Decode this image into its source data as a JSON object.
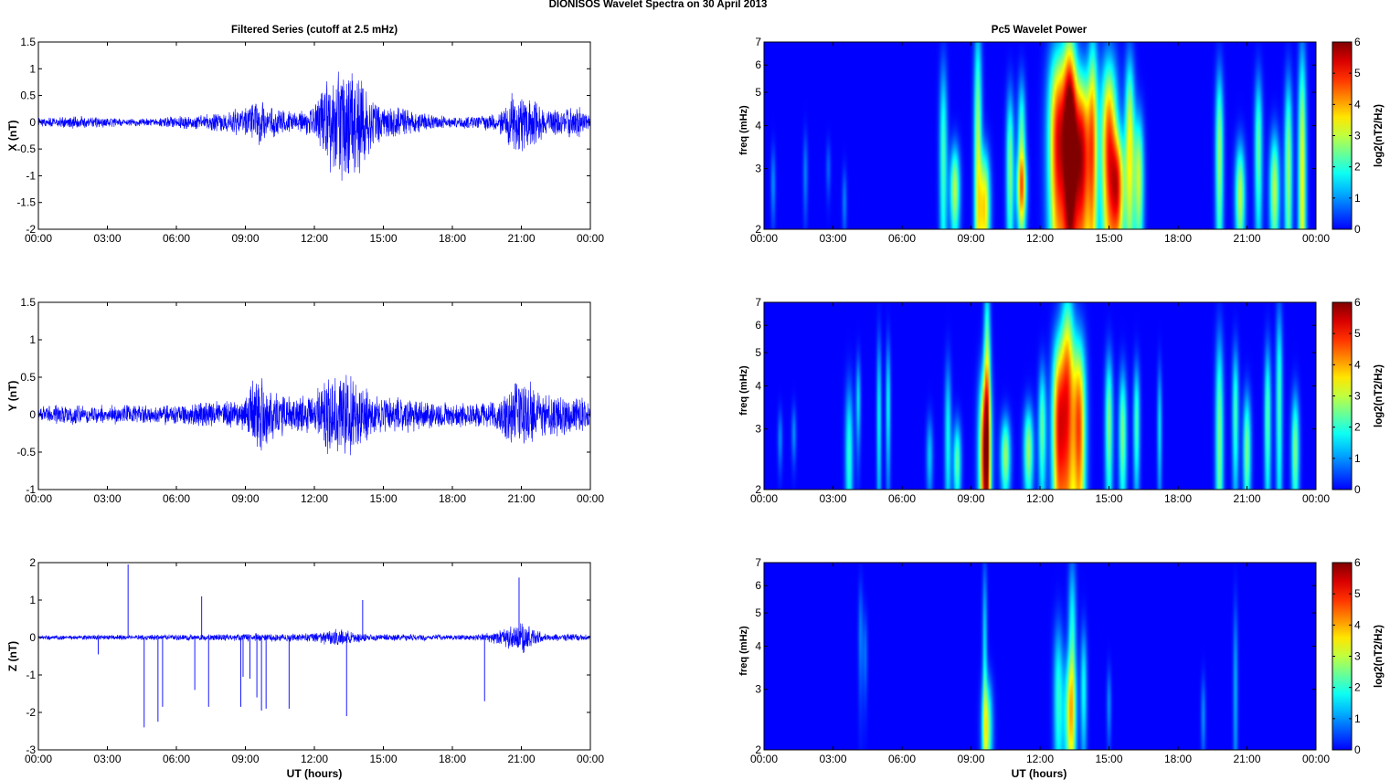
{
  "figure": {
    "suptitle": "DIONISOS Wavelet Spectra on 30 April     2013",
    "left_title": "Filtered Series (cutoff at 2.5 mHz)",
    "right_title": "Pc5 Wavelet Power",
    "xlabel": "UT (hours)"
  },
  "colors": {
    "trace": "#0000ff",
    "spectrum_background": "#00008f",
    "axes": "#000000",
    "colormap": "jet"
  },
  "chart_data": [
    {
      "type": "line",
      "panel": "X",
      "ylabel": "X (nT)",
      "xlabel": "",
      "xlim": [
        0,
        24
      ],
      "ylim": [
        -2,
        1.5
      ],
      "xticks": [
        "00:00",
        "03:00",
        "06:00",
        "09:00",
        "12:00",
        "15:00",
        "18:00",
        "21:00",
        "00:00"
      ],
      "yticks": [
        "-2",
        "-1.5",
        "-1",
        "-0.5",
        "0",
        "0.5",
        "1",
        "1.5"
      ],
      "x": [
        0,
        1,
        2,
        3,
        4,
        5,
        6,
        7,
        8,
        9,
        9.5,
        10,
        11,
        12,
        12.5,
        13,
        13.5,
        14,
        14.5,
        15,
        16,
        17,
        18,
        19,
        20,
        20.5,
        21,
        21.5,
        22,
        23,
        23.5,
        24
      ],
      "amplitude": [
        0.08,
        0.12,
        0.12,
        0.1,
        0.08,
        0.08,
        0.12,
        0.15,
        0.2,
        0.3,
        0.5,
        0.35,
        0.2,
        0.3,
        0.9,
        1.05,
        1.2,
        1.0,
        0.6,
        0.35,
        0.3,
        0.15,
        0.12,
        0.12,
        0.2,
        0.55,
        0.65,
        0.5,
        0.3,
        0.3,
        0.35,
        0.1
      ]
    },
    {
      "type": "heatmap",
      "panel": "X",
      "ylabel": "freq (mHz)",
      "colorbar_label": "log2(nT2/Hz)",
      "xlim": [
        0,
        24
      ],
      "ylim": [
        2,
        7
      ],
      "yscale": "log",
      "clim": [
        0,
        6
      ],
      "xticks": [
        "00:00",
        "03:00",
        "06:00",
        "09:00",
        "12:00",
        "15:00",
        "18:00",
        "21:00",
        "00:00"
      ],
      "yticks": [
        "2",
        "3",
        "4",
        "5",
        "6",
        "7"
      ],
      "cticks": [
        "0",
        "1",
        "2",
        "3",
        "4",
        "5",
        "6"
      ],
      "features": [
        {
          "t": 0.4,
          "f": 2.7,
          "w": 0.07,
          "h": 0.5,
          "p": 1.0
        },
        {
          "t": 1.8,
          "f": 2.9,
          "w": 0.07,
          "h": 0.6,
          "p": 0.9
        },
        {
          "t": 2.8,
          "f": 3.0,
          "w": 0.07,
          "h": 0.4,
          "p": 0.7
        },
        {
          "t": 3.5,
          "f": 2.4,
          "w": 0.07,
          "h": 0.4,
          "p": 0.9
        },
        {
          "t": 7.8,
          "f": 3.2,
          "w": 0.12,
          "h": 1.8,
          "p": 2.2
        },
        {
          "t": 8.3,
          "f": 2.6,
          "w": 0.15,
          "h": 0.6,
          "p": 3.0
        },
        {
          "t": 9.3,
          "f": 3.0,
          "w": 0.12,
          "h": 3.0,
          "p": 3.0
        },
        {
          "t": 9.6,
          "f": 2.3,
          "w": 0.16,
          "h": 0.7,
          "p": 3.6
        },
        {
          "t": 10.7,
          "f": 3.0,
          "w": 0.12,
          "h": 1.3,
          "p": 2.6
        },
        {
          "t": 11.2,
          "f": 3.6,
          "w": 0.12,
          "h": 1.2,
          "p": 2.4
        },
        {
          "t": 11.2,
          "f": 2.6,
          "w": 0.15,
          "h": 0.5,
          "p": 3.0
        },
        {
          "t": 12.8,
          "f": 3.5,
          "w": 0.3,
          "h": 2.0,
          "p": 5.2
        },
        {
          "t": 13.3,
          "f": 3.8,
          "w": 0.2,
          "h": 2.5,
          "p": 5.0
        },
        {
          "t": 13.8,
          "f": 3.2,
          "w": 0.3,
          "h": 1.6,
          "p": 5.6
        },
        {
          "t": 14.3,
          "f": 3.6,
          "w": 0.15,
          "h": 2.5,
          "p": 3.2
        },
        {
          "t": 15.0,
          "f": 3.4,
          "w": 0.25,
          "h": 1.8,
          "p": 4.8
        },
        {
          "t": 15.4,
          "f": 2.6,
          "w": 0.2,
          "h": 0.8,
          "p": 4.0
        },
        {
          "t": 15.9,
          "f": 3.5,
          "w": 0.15,
          "h": 1.8,
          "p": 3.4
        },
        {
          "t": 16.3,
          "f": 2.8,
          "w": 0.15,
          "h": 1.0,
          "p": 3.0
        },
        {
          "t": 19.8,
          "f": 3.3,
          "w": 0.12,
          "h": 1.6,
          "p": 2.8
        },
        {
          "t": 20.7,
          "f": 2.5,
          "w": 0.15,
          "h": 0.7,
          "p": 3.0
        },
        {
          "t": 21.5,
          "f": 3.4,
          "w": 0.12,
          "h": 1.4,
          "p": 2.4
        },
        {
          "t": 22.2,
          "f": 2.6,
          "w": 0.15,
          "h": 0.8,
          "p": 3.0
        },
        {
          "t": 22.8,
          "f": 3.0,
          "w": 0.12,
          "h": 1.6,
          "p": 2.8
        },
        {
          "t": 23.4,
          "f": 2.7,
          "w": 0.12,
          "h": 2.5,
          "p": 3.4
        }
      ]
    },
    {
      "type": "line",
      "panel": "Y",
      "ylabel": "Y (nT)",
      "xlabel": "",
      "xlim": [
        0,
        24
      ],
      "ylim": [
        -1,
        1.5
      ],
      "xticks": [
        "00:00",
        "03:00",
        "06:00",
        "09:00",
        "12:00",
        "15:00",
        "18:00",
        "21:00",
        "00:00"
      ],
      "yticks": [
        "-1",
        "-0.5",
        "0",
        "0.5",
        "1",
        "1.5"
      ],
      "x": [
        0,
        1,
        2,
        3,
        4,
        5,
        6,
        7,
        8,
        9,
        9.5,
        10,
        11,
        12,
        12.5,
        13,
        13.5,
        14,
        14.5,
        15,
        16,
        17,
        18,
        19,
        20,
        20.5,
        21,
        21.5,
        22,
        23,
        23.5,
        24
      ],
      "amplitude": [
        0.12,
        0.14,
        0.14,
        0.14,
        0.14,
        0.14,
        0.16,
        0.18,
        0.2,
        0.25,
        0.6,
        0.4,
        0.25,
        0.3,
        0.55,
        0.65,
        0.6,
        0.45,
        0.3,
        0.25,
        0.25,
        0.2,
        0.18,
        0.18,
        0.25,
        0.45,
        0.55,
        0.45,
        0.3,
        0.3,
        0.3,
        0.2
      ]
    },
    {
      "type": "heatmap",
      "panel": "Y",
      "ylabel": "freq (mHz)",
      "colorbar_label": "log2(nT2/Hz)",
      "xlim": [
        0,
        24
      ],
      "ylim": [
        2,
        7
      ],
      "yscale": "log",
      "clim": [
        0,
        6
      ],
      "xticks": [
        "00:00",
        "03:00",
        "06:00",
        "09:00",
        "12:00",
        "15:00",
        "18:00",
        "21:00",
        "00:00"
      ],
      "yticks": [
        "2",
        "3",
        "4",
        "5",
        "6",
        "7"
      ],
      "cticks": [
        "0",
        "1",
        "2",
        "3",
        "4",
        "5",
        "6"
      ],
      "features": [
        {
          "t": 0.7,
          "f": 2.8,
          "w": 0.07,
          "h": 0.4,
          "p": 1.0
        },
        {
          "t": 1.3,
          "f": 2.9,
          "w": 0.07,
          "h": 0.4,
          "p": 1.0
        },
        {
          "t": 3.7,
          "f": 2.5,
          "w": 0.12,
          "h": 1.0,
          "p": 2.0
        },
        {
          "t": 4.1,
          "f": 3.6,
          "w": 0.07,
          "h": 0.8,
          "p": 1.6
        },
        {
          "t": 5.0,
          "f": 3.2,
          "w": 0.07,
          "h": 1.5,
          "p": 1.8
        },
        {
          "t": 5.4,
          "f": 3.5,
          "w": 0.07,
          "h": 1.2,
          "p": 1.8
        },
        {
          "t": 7.2,
          "f": 2.5,
          "w": 0.1,
          "h": 0.5,
          "p": 1.4
        },
        {
          "t": 8.0,
          "f": 2.8,
          "w": 0.1,
          "h": 1.2,
          "p": 1.8
        },
        {
          "t": 8.4,
          "f": 2.4,
          "w": 0.12,
          "h": 0.5,
          "p": 2.4
        },
        {
          "t": 9.6,
          "f": 2.5,
          "w": 0.18,
          "h": 1.2,
          "p": 4.8
        },
        {
          "t": 9.7,
          "f": 4.0,
          "w": 0.1,
          "h": 2.5,
          "p": 3.0
        },
        {
          "t": 10.5,
          "f": 2.5,
          "w": 0.15,
          "h": 0.5,
          "p": 2.8
        },
        {
          "t": 11.5,
          "f": 2.6,
          "w": 0.15,
          "h": 0.6,
          "p": 2.8
        },
        {
          "t": 12.1,
          "f": 3.0,
          "w": 0.12,
          "h": 1.0,
          "p": 2.4
        },
        {
          "t": 12.8,
          "f": 3.0,
          "w": 0.2,
          "h": 1.6,
          "p": 4.6
        },
        {
          "t": 13.2,
          "f": 3.6,
          "w": 0.2,
          "h": 2.4,
          "p": 4.4
        },
        {
          "t": 13.7,
          "f": 3.0,
          "w": 0.2,
          "h": 1.6,
          "p": 4.6
        },
        {
          "t": 15.0,
          "f": 3.1,
          "w": 0.12,
          "h": 1.2,
          "p": 2.6
        },
        {
          "t": 15.6,
          "f": 2.9,
          "w": 0.12,
          "h": 1.0,
          "p": 2.6
        },
        {
          "t": 16.2,
          "f": 3.1,
          "w": 0.1,
          "h": 1.0,
          "p": 2.2
        },
        {
          "t": 17.2,
          "f": 3.0,
          "w": 0.07,
          "h": 1.0,
          "p": 1.6
        },
        {
          "t": 19.8,
          "f": 2.8,
          "w": 0.12,
          "h": 1.8,
          "p": 2.6
        },
        {
          "t": 20.5,
          "f": 3.3,
          "w": 0.1,
          "h": 1.2,
          "p": 2.2
        },
        {
          "t": 21.0,
          "f": 2.6,
          "w": 0.12,
          "h": 0.8,
          "p": 2.6
        },
        {
          "t": 21.9,
          "f": 3.2,
          "w": 0.1,
          "h": 1.3,
          "p": 2.4
        },
        {
          "t": 22.4,
          "f": 3.6,
          "w": 0.1,
          "h": 2.0,
          "p": 2.2
        },
        {
          "t": 23.1,
          "f": 2.6,
          "w": 0.12,
          "h": 0.8,
          "p": 2.6
        }
      ]
    },
    {
      "type": "line",
      "panel": "Z",
      "ylabel": "Z (nT)",
      "xlabel": "UT (hours)",
      "xlim": [
        0,
        24
      ],
      "ylim": [
        -3,
        2
      ],
      "xticks": [
        "00:00",
        "03:00",
        "06:00",
        "09:00",
        "12:00",
        "15:00",
        "18:00",
        "21:00",
        "00:00"
      ],
      "yticks": [
        "-3",
        "-2",
        "-1",
        "0",
        "1",
        "2"
      ],
      "x": [
        0,
        1,
        2,
        3,
        4,
        5,
        6,
        7,
        8,
        9,
        9.5,
        10,
        11,
        12,
        12.5,
        13,
        13.5,
        14,
        14.5,
        15,
        16,
        17,
        18,
        19,
        20,
        20.5,
        21,
        21.5,
        22,
        23,
        23.5,
        24
      ],
      "amplitude": [
        0.06,
        0.07,
        0.07,
        0.07,
        0.08,
        0.08,
        0.09,
        0.09,
        0.1,
        0.11,
        0.12,
        0.12,
        0.12,
        0.14,
        0.2,
        0.25,
        0.2,
        0.15,
        0.1,
        0.1,
        0.1,
        0.09,
        0.08,
        0.09,
        0.18,
        0.35,
        0.45,
        0.3,
        0.12,
        0.1,
        0.1,
        0.08
      ],
      "spikes": [
        {
          "t": 2.6,
          "v": -0.45
        },
        {
          "t": 3.9,
          "v": 1.95
        },
        {
          "t": 4.6,
          "v": -2.4
        },
        {
          "t": 5.2,
          "v": -2.25
        },
        {
          "t": 5.4,
          "v": -1.85
        },
        {
          "t": 6.8,
          "v": -1.4
        },
        {
          "t": 7.1,
          "v": 1.1
        },
        {
          "t": 7.4,
          "v": -1.85
        },
        {
          "t": 8.8,
          "v": -1.85
        },
        {
          "t": 8.9,
          "v": -1.05
        },
        {
          "t": 9.2,
          "v": -1.1
        },
        {
          "t": 9.5,
          "v": -1.6
        },
        {
          "t": 9.7,
          "v": -1.95
        },
        {
          "t": 9.9,
          "v": -1.9
        },
        {
          "t": 10.9,
          "v": -1.9
        },
        {
          "t": 13.4,
          "v": -2.1
        },
        {
          "t": 14.1,
          "v": 1.0
        },
        {
          "t": 19.4,
          "v": -1.7
        },
        {
          "t": 20.9,
          "v": 1.6
        }
      ]
    },
    {
      "type": "heatmap",
      "panel": "Z",
      "ylabel": "freq (mHz)",
      "colorbar_label": "log2(nT2/Hz)",
      "xlim": [
        0,
        24
      ],
      "ylim": [
        2,
        7
      ],
      "yscale": "log",
      "clim": [
        0,
        6
      ],
      "xticks": [
        "00:00",
        "03:00",
        "06:00",
        "09:00",
        "12:00",
        "15:00",
        "18:00",
        "21:00",
        "00:00"
      ],
      "yticks": [
        "2",
        "3",
        "4",
        "5",
        "6",
        "7"
      ],
      "cticks": [
        "0",
        "1",
        "2",
        "3",
        "4",
        "5",
        "6"
      ],
      "features": [
        {
          "t": 4.2,
          "f": 4.3,
          "w": 0.07,
          "h": 1.2,
          "p": 0.9
        },
        {
          "t": 4.4,
          "f": 3.8,
          "w": 0.07,
          "h": 0.8,
          "p": 0.8
        },
        {
          "t": 9.7,
          "f": 2.3,
          "w": 0.16,
          "h": 0.6,
          "p": 2.8
        },
        {
          "t": 9.6,
          "f": 3.8,
          "w": 0.07,
          "h": 2.0,
          "p": 1.6
        },
        {
          "t": 12.8,
          "f": 2.8,
          "w": 0.15,
          "h": 1.2,
          "p": 2.0
        },
        {
          "t": 13.3,
          "f": 2.5,
          "w": 0.18,
          "h": 0.8,
          "p": 2.8
        },
        {
          "t": 13.4,
          "f": 4.0,
          "w": 0.12,
          "h": 2.0,
          "p": 2.0
        },
        {
          "t": 13.9,
          "f": 3.0,
          "w": 0.1,
          "h": 1.0,
          "p": 1.8
        },
        {
          "t": 15.0,
          "f": 2.7,
          "w": 0.07,
          "h": 0.5,
          "p": 1.0
        },
        {
          "t": 19.1,
          "f": 2.5,
          "w": 0.07,
          "h": 0.5,
          "p": 1.0
        },
        {
          "t": 20.5,
          "f": 3.0,
          "w": 0.07,
          "h": 1.5,
          "p": 1.2
        }
      ]
    }
  ]
}
